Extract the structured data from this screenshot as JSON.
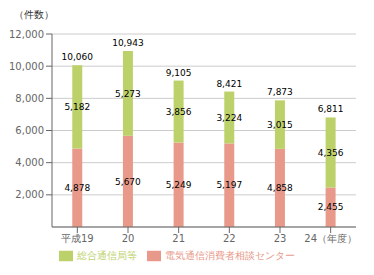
{
  "chart_data": {
    "type": "bar",
    "stacked": true,
    "ylabel": "（件数）",
    "categories": [
      "平成19",
      "20",
      "21",
      "22",
      "23",
      "24（年度）"
    ],
    "series": [
      {
        "name": "電気通信消費者相談センター",
        "color": "#e8998a",
        "values": [
          4878,
          5670,
          5249,
          5197,
          4858,
          2455
        ],
        "value_labels": [
          "4,878",
          "5,670",
          "5,249",
          "5,197",
          "4,858",
          "2,455"
        ]
      },
      {
        "name": "総合通信局等",
        "color": "#bdd16b",
        "values": [
          5182,
          5273,
          3856,
          3224,
          3015,
          4356
        ],
        "value_labels": [
          "5,182",
          "5,273",
          "3,856",
          "3,224",
          "3,015",
          "4,356"
        ]
      }
    ],
    "totals": [
      10060,
      10943,
      9105,
      8421,
      7873,
      6811
    ],
    "total_labels": [
      "10,060",
      "10,943",
      "9,105",
      "8,421",
      "7,873",
      "6,811"
    ],
    "ylim": [
      0,
      12000
    ],
    "yticks": [
      {
        "value": 2000,
        "label": "2,000"
      },
      {
        "value": 4000,
        "label": "4,000"
      },
      {
        "value": 6000,
        "label": "6,000"
      },
      {
        "value": 8000,
        "label": "8,000"
      },
      {
        "value": 10000,
        "label": "10,000"
      },
      {
        "value": 12000,
        "label": "12,000"
      }
    ],
    "grid": true,
    "legend": "bottom",
    "data_labels": true
  }
}
